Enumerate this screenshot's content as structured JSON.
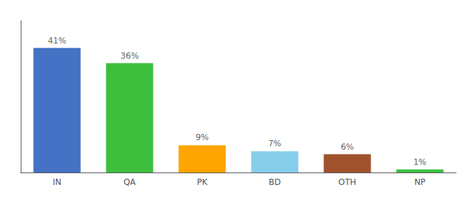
{
  "chart_data": {
    "type": "bar",
    "categories": [
      "IN",
      "QA",
      "PK",
      "BD",
      "OTH",
      "NP"
    ],
    "values": [
      41,
      36,
      9,
      7,
      6,
      1
    ],
    "value_labels": [
      "41%",
      "36%",
      "9%",
      "7%",
      "6%",
      "1%"
    ],
    "data_labels": true,
    "colors": [
      "#4472C4",
      "#3DBF3D",
      "#FFA500",
      "#87CEEB",
      "#A0522D",
      "#3DBF3D"
    ],
    "ylim": [
      0,
      50
    ],
    "grid": false,
    "tick_labels": "x"
  }
}
